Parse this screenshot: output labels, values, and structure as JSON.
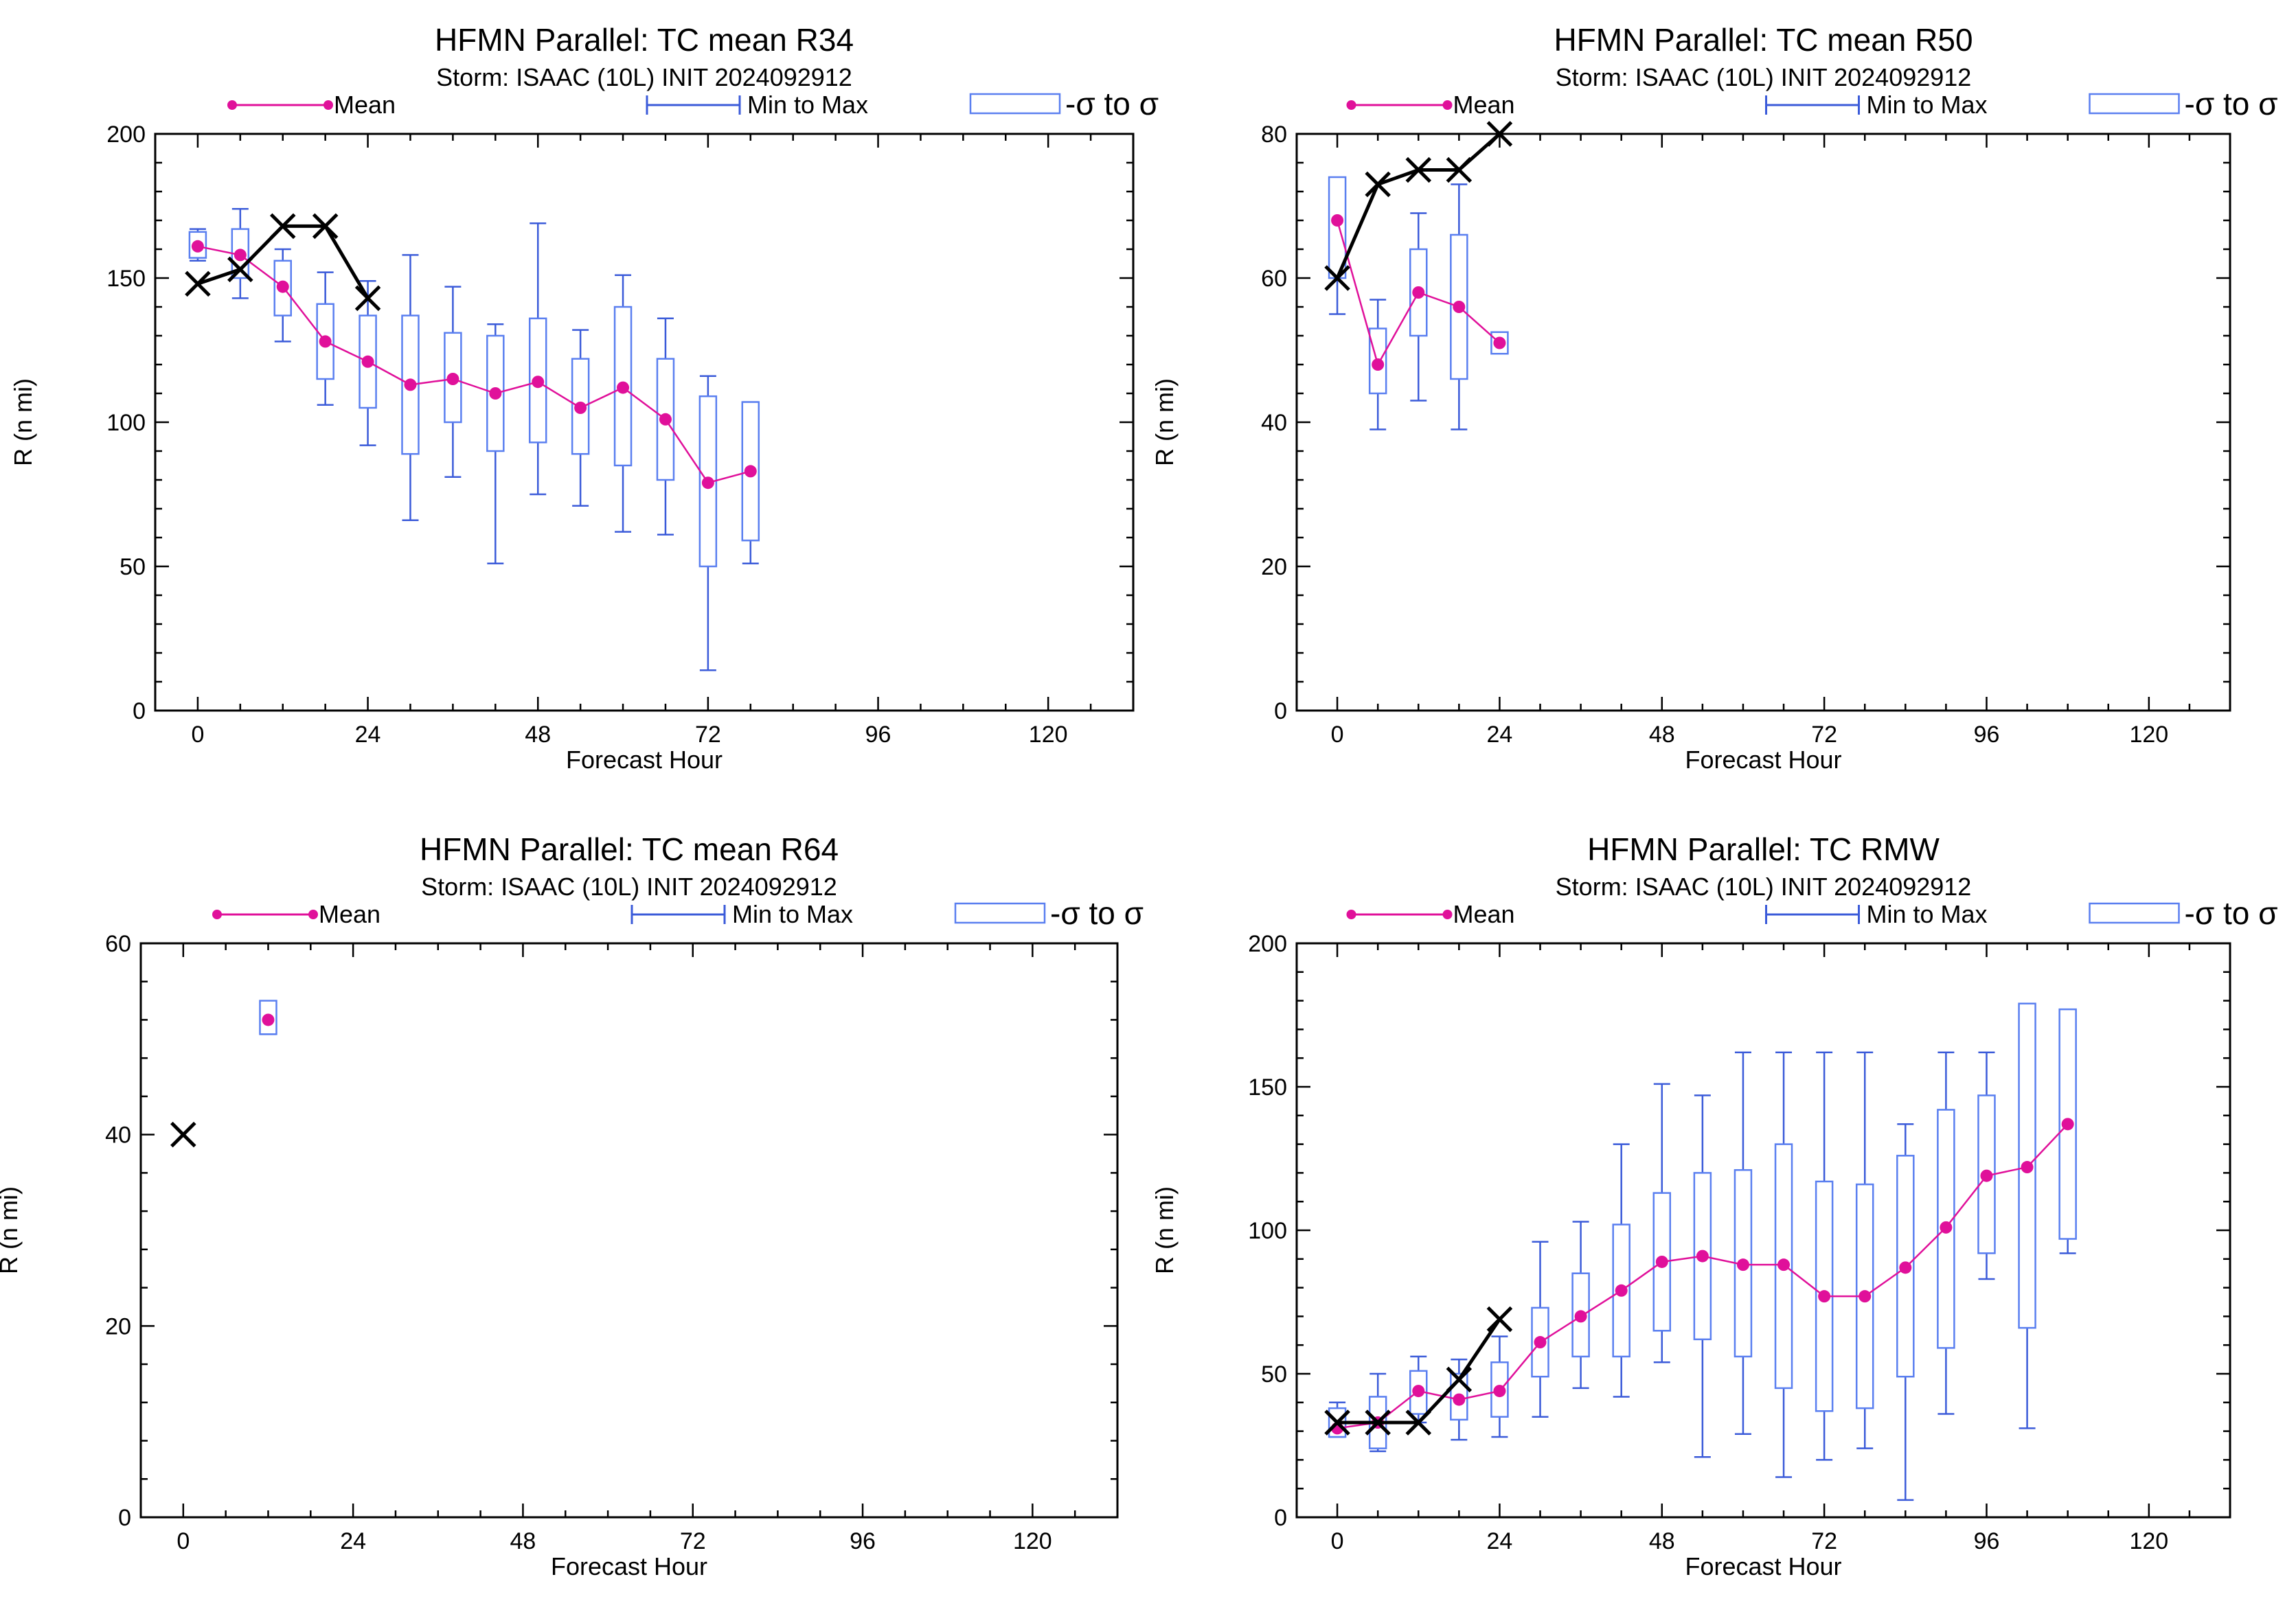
{
  "colors": {
    "mean": "#e0109a",
    "range": "#3b5bd9",
    "sigma": "#5a7ff0",
    "obs": "#000000"
  },
  "legend": {
    "mean": "Mean",
    "range": "Min to Max",
    "sigma": "-σ to σ"
  },
  "chart_data": [
    {
      "type": "box",
      "title": "HFMN Parallel: TC mean R34",
      "subtitle": "Storm: ISAAC (10L) INIT 2024092912",
      "xlabel": "Forecast Hour",
      "ylabel": "R (n mi)",
      "xlim": [
        -6,
        132
      ],
      "ylim": [
        0,
        200
      ],
      "xticks": [
        "0",
        "24",
        "48",
        "72",
        "96",
        "120"
      ],
      "yticks": [
        "0",
        "50",
        "100",
        "150",
        "200"
      ],
      "stats": [
        {
          "x": 0,
          "min": 156,
          "max": 167,
          "lo": 157,
          "hi": 166,
          "mean": 161
        },
        {
          "x": 6,
          "min": 143,
          "max": 174,
          "lo": 150,
          "hi": 167,
          "mean": 158
        },
        {
          "x": 12,
          "min": 128,
          "max": 160,
          "lo": 137,
          "hi": 156,
          "mean": 147
        },
        {
          "x": 18,
          "min": 106,
          "max": 152,
          "lo": 115,
          "hi": 141,
          "mean": 128
        },
        {
          "x": 24,
          "min": 92,
          "max": 149,
          "lo": 105,
          "hi": 137,
          "mean": 121
        },
        {
          "x": 30,
          "min": 66,
          "max": 158,
          "lo": 89,
          "hi": 137,
          "mean": 113
        },
        {
          "x": 36,
          "min": 81,
          "max": 147,
          "lo": 100,
          "hi": 131,
          "mean": 115
        },
        {
          "x": 42,
          "min": 51,
          "max": 134,
          "lo": 90,
          "hi": 130,
          "mean": 110
        },
        {
          "x": 48,
          "min": 75,
          "max": 169,
          "lo": 93,
          "hi": 136,
          "mean": 114
        },
        {
          "x": 54,
          "min": 71,
          "max": 132,
          "lo": 89,
          "hi": 122,
          "mean": 105
        },
        {
          "x": 60,
          "min": 62,
          "max": 151,
          "lo": 85,
          "hi": 140,
          "mean": 112
        },
        {
          "x": 66,
          "min": 61,
          "max": 136,
          "lo": 80,
          "hi": 122,
          "mean": 101
        },
        {
          "x": 72,
          "min": 14,
          "max": 116,
          "lo": 50,
          "hi": 109,
          "mean": 79
        },
        {
          "x": 78,
          "min": 51,
          "max": 107,
          "lo": 59,
          "hi": 107,
          "mean": 83
        }
      ],
      "observed": [
        {
          "x": 0,
          "y": 148
        },
        {
          "x": 6,
          "y": 153
        },
        {
          "x": 12,
          "y": 168
        },
        {
          "x": 18,
          "y": 168
        },
        {
          "x": 24,
          "y": 143
        }
      ]
    },
    {
      "type": "box",
      "title": "HFMN Parallel: TC mean R50",
      "subtitle": "Storm: ISAAC (10L) INIT 2024092912",
      "xlabel": "Forecast Hour",
      "ylabel": "R (n mi)",
      "xlim": [
        -6,
        132
      ],
      "ylim": [
        0,
        80
      ],
      "xticks": [
        "0",
        "24",
        "48",
        "72",
        "96",
        "120"
      ],
      "yticks": [
        "0",
        "20",
        "40",
        "60",
        "80"
      ],
      "stats": [
        {
          "x": 0,
          "min": 55,
          "max": 72,
          "lo": 60,
          "hi": 74,
          "mean": 68
        },
        {
          "x": 6,
          "min": 39,
          "max": 57,
          "lo": 44,
          "hi": 53,
          "mean": 48
        },
        {
          "x": 12,
          "min": 43,
          "max": 69,
          "lo": 52,
          "hi": 64,
          "mean": 58
        },
        {
          "x": 18,
          "min": 39,
          "max": 73,
          "lo": 46,
          "hi": 66,
          "mean": 56
        },
        {
          "x": 24,
          "min": 50,
          "max": 52,
          "lo": 49.5,
          "hi": 52.5,
          "mean": 51
        }
      ],
      "observed": [
        {
          "x": 0,
          "y": 60
        },
        {
          "x": 6,
          "y": 73
        },
        {
          "x": 12,
          "y": 75
        },
        {
          "x": 18,
          "y": 75
        },
        {
          "x": 24,
          "y": 80
        }
      ]
    },
    {
      "type": "box",
      "title": "HFMN Parallel: TC mean R64",
      "subtitle": "Storm: ISAAC (10L) INIT 2024092912",
      "xlabel": "Forecast Hour",
      "ylabel": "R (n mi)",
      "xlim": [
        -6,
        132
      ],
      "ylim": [
        0,
        60
      ],
      "xticks": [
        "0",
        "24",
        "48",
        "72",
        "96",
        "120"
      ],
      "yticks": [
        "0",
        "20",
        "40",
        "60"
      ],
      "stats": [
        {
          "x": 12,
          "min": 50.5,
          "max": 53.5,
          "lo": 50.5,
          "hi": 54,
          "mean": 52
        }
      ],
      "observed": [
        {
          "x": 0,
          "y": 40
        }
      ]
    },
    {
      "type": "box",
      "title": "HFMN Parallel: TC RMW",
      "subtitle": "Storm: ISAAC (10L) INIT 2024092912",
      "xlabel": "Forecast Hour",
      "ylabel": "R (n mi)",
      "xlim": [
        -6,
        132
      ],
      "ylim": [
        0,
        200
      ],
      "xticks": [
        "0",
        "24",
        "48",
        "72",
        "96",
        "120"
      ],
      "yticks": [
        "0",
        "50",
        "100",
        "150",
        "200"
      ],
      "stats": [
        {
          "x": 0,
          "min": 28,
          "max": 40,
          "lo": 28,
          "hi": 38,
          "mean": 31
        },
        {
          "x": 6,
          "min": 23,
          "max": 50,
          "lo": 24,
          "hi": 42,
          "mean": 33
        },
        {
          "x": 12,
          "min": 33,
          "max": 56,
          "lo": 36,
          "hi": 51,
          "mean": 44
        },
        {
          "x": 18,
          "min": 27,
          "max": 55,
          "lo": 34,
          "hi": 50,
          "mean": 41
        },
        {
          "x": 24,
          "min": 28,
          "max": 63,
          "lo": 35,
          "hi": 54,
          "mean": 44
        },
        {
          "x": 30,
          "min": 35,
          "max": 96,
          "lo": 49,
          "hi": 73,
          "mean": 61
        },
        {
          "x": 36,
          "min": 45,
          "max": 103,
          "lo": 56,
          "hi": 85,
          "mean": 70
        },
        {
          "x": 42,
          "min": 42,
          "max": 130,
          "lo": 56,
          "hi": 102,
          "mean": 79
        },
        {
          "x": 48,
          "min": 54,
          "max": 151,
          "lo": 65,
          "hi": 113,
          "mean": 89
        },
        {
          "x": 54,
          "min": 21,
          "max": 147,
          "lo": 62,
          "hi": 120,
          "mean": 91
        },
        {
          "x": 60,
          "min": 29,
          "max": 162,
          "lo": 56,
          "hi": 121,
          "mean": 88
        },
        {
          "x": 66,
          "min": 14,
          "max": 162,
          "lo": 45,
          "hi": 130,
          "mean": 88
        },
        {
          "x": 72,
          "min": 20,
          "max": 162,
          "lo": 37,
          "hi": 117,
          "mean": 77
        },
        {
          "x": 78,
          "min": 24,
          "max": 162,
          "lo": 38,
          "hi": 116,
          "mean": 77
        },
        {
          "x": 84,
          "min": 6,
          "max": 137,
          "lo": 49,
          "hi": 126,
          "mean": 87
        },
        {
          "x": 90,
          "min": 36,
          "max": 162,
          "lo": 59,
          "hi": 142,
          "mean": 101
        },
        {
          "x": 96,
          "min": 83,
          "max": 162,
          "lo": 92,
          "hi": 147,
          "mean": 119
        },
        {
          "x": 102,
          "min": 31,
          "max": 162,
          "lo": 66,
          "hi": 179,
          "mean": 122
        },
        {
          "x": 108,
          "min": 92,
          "max": 162,
          "lo": 97,
          "hi": 177,
          "mean": 137
        }
      ],
      "observed": [
        {
          "x": 0,
          "y": 33
        },
        {
          "x": 6,
          "y": 33
        },
        {
          "x": 12,
          "y": 33
        },
        {
          "x": 18,
          "y": 48
        },
        {
          "x": 24,
          "y": 69
        }
      ]
    }
  ]
}
